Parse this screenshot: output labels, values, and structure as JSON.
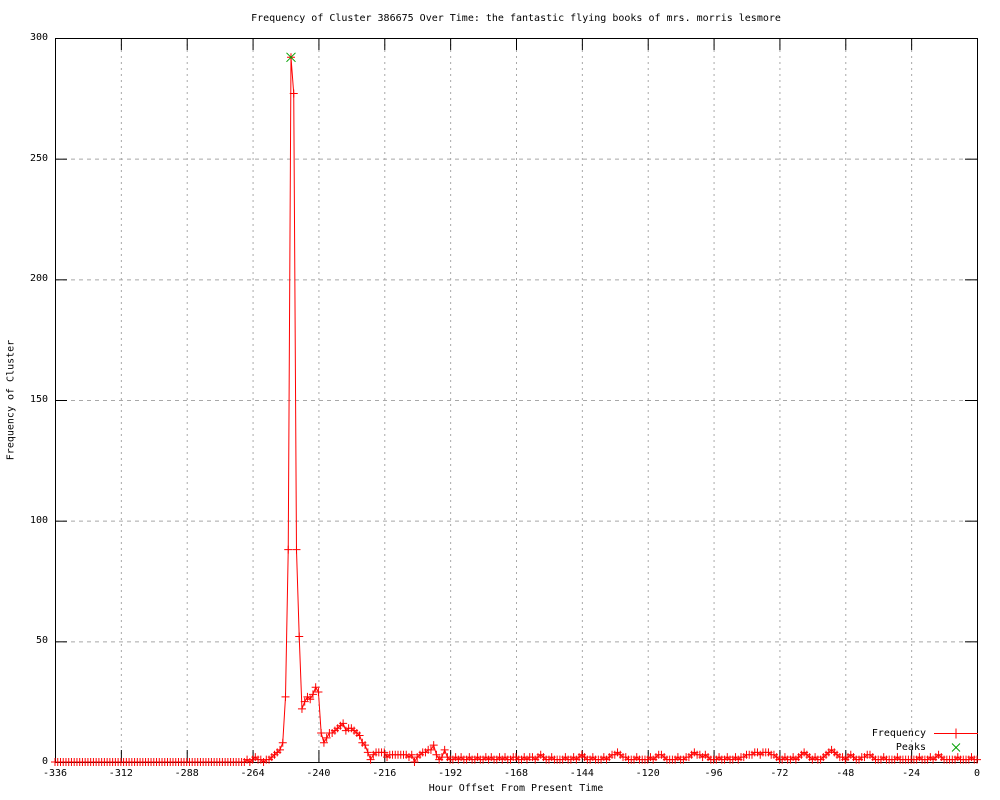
{
  "colors": {
    "frequency_line": "#ff0000",
    "peaks_marker": "#00a000",
    "grid": "#a8a8a8",
    "axis": "#000000",
    "background": "#ffffff"
  },
  "chart_data": {
    "type": "line",
    "title": "Frequency of Cluster 386675 Over Time: the fantastic flying books of mrs. morris lesmore",
    "xlabel": "Hour Offset From Present Time",
    "ylabel": "Frequency of Cluster",
    "xlim": [
      -336,
      0
    ],
    "ylim": [
      0,
      300
    ],
    "x_ticks": [
      -336,
      -312,
      -288,
      -264,
      -240,
      -216,
      -192,
      -168,
      -144,
      -120,
      -96,
      -72,
      -48,
      -24,
      0
    ],
    "y_ticks": [
      0,
      50,
      100,
      150,
      200,
      250,
      300
    ],
    "grid": true,
    "legend_position": "bottom-right",
    "series": [
      {
        "name": "Frequency",
        "color": "#ff0000",
        "marker": "plus",
        "x_start": -336,
        "x_step": 1,
        "values": [
          0,
          0,
          0,
          0,
          0,
          0,
          0,
          0,
          0,
          0,
          0,
          0,
          0,
          0,
          0,
          0,
          0,
          0,
          0,
          0,
          0,
          0,
          0,
          0,
          0,
          0,
          0,
          0,
          0,
          0,
          0,
          0,
          0,
          0,
          0,
          0,
          0,
          0,
          0,
          0,
          0,
          0,
          0,
          0,
          0,
          0,
          0,
          0,
          0,
          0,
          0,
          0,
          0,
          0,
          0,
          0,
          0,
          0,
          0,
          0,
          0,
          0,
          0,
          0,
          0,
          0,
          0,
          0,
          0,
          0,
          1,
          0,
          1,
          2,
          1,
          1,
          0,
          1,
          1,
          2,
          3,
          4,
          5,
          8,
          27,
          88,
          292,
          277,
          88,
          52,
          22,
          25,
          27,
          26,
          28,
          31,
          29,
          12,
          8,
          10,
          12,
          12,
          13,
          14,
          15,
          16,
          13,
          14,
          14,
          13,
          12,
          11,
          8,
          7,
          4,
          1,
          3,
          4,
          4,
          4,
          4,
          2,
          3,
          3,
          3,
          3,
          3,
          3,
          3,
          2,
          3,
          0,
          2,
          3,
          4,
          4,
          5,
          5,
          7,
          3,
          1,
          2,
          5,
          2,
          1,
          1,
          2,
          1,
          2,
          1,
          1,
          2,
          1,
          1,
          2,
          1,
          1,
          2,
          1,
          2,
          1,
          1,
          2,
          1,
          2,
          1,
          1,
          2,
          2,
          1,
          1,
          2,
          1,
          2,
          2,
          1,
          2,
          3,
          2,
          1,
          1,
          2,
          1,
          1,
          1,
          1,
          2,
          1,
          1,
          2,
          1,
          2,
          3,
          2,
          1,
          1,
          2,
          1,
          1,
          1,
          2,
          1,
          2,
          3,
          3,
          4,
          3,
          2,
          2,
          1,
          1,
          1,
          2,
          1,
          1,
          1,
          1,
          2,
          1,
          2,
          3,
          3,
          2,
          1,
          1,
          1,
          1,
          2,
          1,
          1,
          2,
          2,
          3,
          4,
          3,
          3,
          2,
          3,
          2,
          1,
          1,
          1,
          2,
          1,
          1,
          2,
          1,
          1,
          2,
          1,
          2,
          2,
          3,
          3,
          3,
          4,
          4,
          3,
          4,
          4,
          4,
          3,
          3,
          2,
          1,
          1,
          2,
          1,
          1,
          2,
          1,
          2,
          3,
          4,
          3,
          2,
          1,
          2,
          1,
          1,
          2,
          3,
          4,
          5,
          4,
          3,
          2,
          2,
          1,
          2,
          3,
          2,
          1,
          1,
          2,
          2,
          3,
          3,
          2,
          1,
          1,
          1,
          2,
          1,
          1,
          1,
          1,
          2,
          1,
          1,
          1,
          1,
          1,
          1,
          1,
          2,
          1,
          1,
          1,
          2,
          1,
          2,
          3,
          2,
          1,
          1,
          1,
          1,
          1,
          2,
          1,
          1,
          1,
          1,
          2,
          1,
          1
        ]
      },
      {
        "name": "Peaks",
        "color": "#00a000",
        "marker": "x",
        "points": [
          [
            -250,
            292
          ]
        ]
      }
    ]
  }
}
